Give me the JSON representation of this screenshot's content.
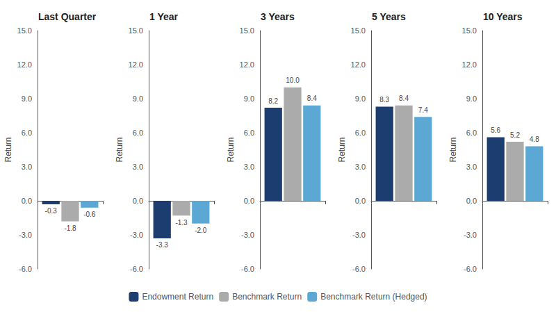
{
  "chart_data": [
    {
      "type": "bar",
      "title": "Last Quarter",
      "categories": [
        null
      ],
      "series": [
        {
          "name": "Endowment Return",
          "color": "#1B3D6F",
          "values": [
            -0.3
          ],
          "value_labels": [
            "-0.3"
          ]
        },
        {
          "name": "Benchmark Return",
          "color": "#ABABAB",
          "values": [
            -1.8
          ],
          "value_labels": [
            "-1.8"
          ]
        },
        {
          "name": "Benchmark Return (Hedged)",
          "color": "#5BA8D4",
          "values": [
            -0.6
          ],
          "value_labels": [
            "-0.6"
          ]
        }
      ],
      "ylabel": "Return",
      "ylim": [
        -6.0,
        15.0
      ],
      "yticks": [
        {
          "value": -6,
          "label": "-6.0"
        },
        {
          "value": -3,
          "label": "-3.0"
        },
        {
          "value": 0,
          "label": "0.0"
        },
        {
          "value": 3,
          "label": "3.0"
        },
        {
          "value": 6,
          "label": "6.0"
        },
        {
          "value": 9,
          "label": "9.0"
        },
        {
          "value": 12,
          "label": "12.0"
        },
        {
          "value": 15,
          "label": "15.0"
        }
      ],
      "grid": false,
      "legend": "bottom",
      "data_labels": true,
      "tick_labels": "y"
    },
    {
      "type": "bar",
      "title": "1 Year",
      "categories": [
        null
      ],
      "series": [
        {
          "name": "Endowment Return",
          "color": "#1B3D6F",
          "values": [
            -3.3
          ],
          "value_labels": [
            "-3.3"
          ]
        },
        {
          "name": "Benchmark Return",
          "color": "#ABABAB",
          "values": [
            -1.3
          ],
          "value_labels": [
            "-1.3"
          ]
        },
        {
          "name": "Benchmark Return (Hedged)",
          "color": "#5BA8D4",
          "values": [
            -2.0
          ],
          "value_labels": [
            "-2.0"
          ]
        }
      ],
      "ylabel": "Return",
      "ylim": [
        -6.0,
        15.0
      ],
      "yticks": [
        {
          "value": -6,
          "label": "-6.0"
        },
        {
          "value": -3,
          "label": "-3.0"
        },
        {
          "value": 0,
          "label": "0.0"
        },
        {
          "value": 3,
          "label": "3.0"
        },
        {
          "value": 6,
          "label": "6.0"
        },
        {
          "value": 9,
          "label": "9.0"
        },
        {
          "value": 12,
          "label": "12.0"
        },
        {
          "value": 15,
          "label": "15.0"
        }
      ],
      "grid": false,
      "legend": "bottom",
      "data_labels": true,
      "tick_labels": "y"
    },
    {
      "type": "bar",
      "title": "3 Years",
      "categories": [
        null
      ],
      "series": [
        {
          "name": "Endowment Return",
          "color": "#1B3D6F",
          "values": [
            8.2
          ],
          "value_labels": [
            "8.2"
          ]
        },
        {
          "name": "Benchmark Return",
          "color": "#ABABAB",
          "values": [
            10.0
          ],
          "value_labels": [
            "10.0"
          ]
        },
        {
          "name": "Benchmark Return (Hedged)",
          "color": "#5BA8D4",
          "values": [
            8.4
          ],
          "value_labels": [
            "8.4"
          ]
        }
      ],
      "ylabel": "Return",
      "ylim": [
        -6.0,
        15.0
      ],
      "yticks": [
        {
          "value": -6,
          "label": "-6.0"
        },
        {
          "value": -3,
          "label": "-3.0"
        },
        {
          "value": 0,
          "label": "0.0"
        },
        {
          "value": 3,
          "label": "3.0"
        },
        {
          "value": 6,
          "label": "6.0"
        },
        {
          "value": 9,
          "label": "9.0"
        },
        {
          "value": 12,
          "label": "12.0"
        },
        {
          "value": 15,
          "label": "15.0"
        }
      ],
      "grid": false,
      "legend": "bottom",
      "data_labels": true,
      "tick_labels": "y"
    },
    {
      "type": "bar",
      "title": "5 Years",
      "categories": [
        null
      ],
      "series": [
        {
          "name": "Endowment Return",
          "color": "#1B3D6F",
          "values": [
            8.3
          ],
          "value_labels": [
            "8.3"
          ]
        },
        {
          "name": "Benchmark Return",
          "color": "#ABABAB",
          "values": [
            8.4
          ],
          "value_labels": [
            "8.4"
          ]
        },
        {
          "name": "Benchmark Return (Hedged)",
          "color": "#5BA8D4",
          "values": [
            7.4
          ],
          "value_labels": [
            "7.4"
          ]
        }
      ],
      "ylabel": "Return",
      "ylim": [
        -6.0,
        15.0
      ],
      "yticks": [
        {
          "value": -6,
          "label": "-6.0"
        },
        {
          "value": -3,
          "label": "-3.0"
        },
        {
          "value": 0,
          "label": "0.0"
        },
        {
          "value": 3,
          "label": "3.0"
        },
        {
          "value": 6,
          "label": "6.0"
        },
        {
          "value": 9,
          "label": "9.0"
        },
        {
          "value": 12,
          "label": "12.0"
        },
        {
          "value": 15,
          "label": "15.0"
        }
      ],
      "grid": false,
      "legend": "bottom",
      "data_labels": true,
      "tick_labels": "y"
    },
    {
      "type": "bar",
      "title": "10 Years",
      "categories": [
        null
      ],
      "series": [
        {
          "name": "Endowment Return",
          "color": "#1B3D6F",
          "values": [
            5.6
          ],
          "value_labels": [
            "5.6"
          ]
        },
        {
          "name": "Benchmark Return",
          "color": "#ABABAB",
          "values": [
            5.2
          ],
          "value_labels": [
            "5.2"
          ]
        },
        {
          "name": "Benchmark Return (Hedged)",
          "color": "#5BA8D4",
          "values": [
            4.8
          ],
          "value_labels": [
            "4.8"
          ]
        }
      ],
      "ylabel": "Return",
      "ylim": [
        -6.0,
        15.0
      ],
      "yticks": [
        {
          "value": -6,
          "label": "-6.0"
        },
        {
          "value": -3,
          "label": "-3.0"
        },
        {
          "value": 0,
          "label": "0.0"
        },
        {
          "value": 3,
          "label": "3.0"
        },
        {
          "value": 6,
          "label": "6.0"
        },
        {
          "value": 9,
          "label": "9.0"
        },
        {
          "value": 12,
          "label": "12.0"
        },
        {
          "value": 15,
          "label": "15.0"
        }
      ],
      "grid": false,
      "legend": "bottom",
      "data_labels": true,
      "tick_labels": "y"
    }
  ]
}
